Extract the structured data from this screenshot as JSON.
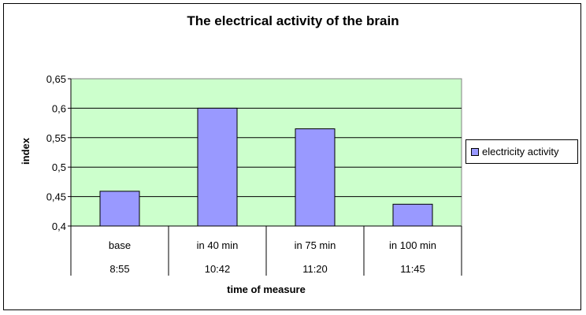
{
  "chart_data": {
    "type": "bar",
    "title": "The electrical activity of the brain",
    "xlabel": "time of measure",
    "ylabel": "index",
    "categories": [
      {
        "label": "base",
        "time": "8:55"
      },
      {
        "label": "in 40 min",
        "time": "10:42"
      },
      {
        "label": "in 75 min",
        "time": "11:20"
      },
      {
        "label": "in 100 min",
        "time": "11:45"
      }
    ],
    "series": [
      {
        "name": "electricity activity",
        "values": [
          0.459,
          0.6,
          0.565,
          0.437
        ],
        "color": "#9999ff"
      }
    ],
    "ylim": [
      0.4,
      0.65
    ],
    "yticks": [
      "0,4",
      "0,45",
      "0,5",
      "0,55",
      "0,6",
      "0,65"
    ],
    "grid": true,
    "plot_background": "#ccffcc",
    "legend_position": "right"
  }
}
